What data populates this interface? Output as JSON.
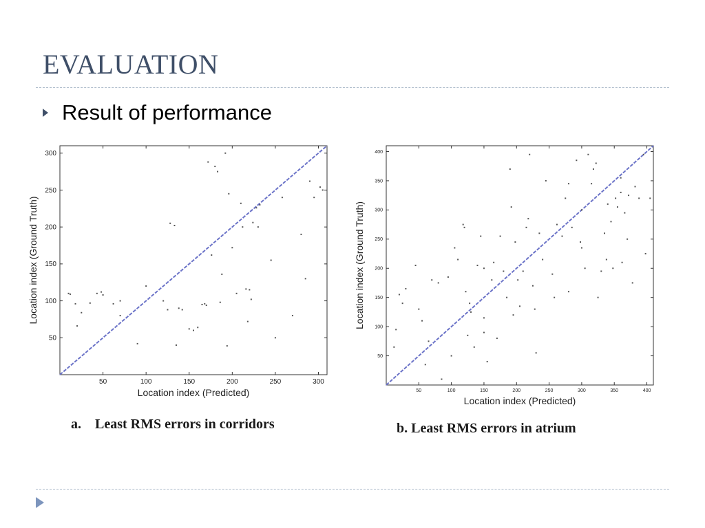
{
  "slide": {
    "title": "EVALUATION",
    "bullet": "Result of performance",
    "caption_a": "a.    Least RMS errors in corridors",
    "caption_b": "b. Least RMS errors in atrium"
  },
  "colors": {
    "title": "#3f4f68",
    "diagonal": "#6b73c8",
    "points": "#555555",
    "rule": "#a9b8c8"
  },
  "icons": {
    "bullet": "triangle-right-icon",
    "footer": "triangle-right-icon"
  },
  "chart_data": [
    {
      "type": "scatter",
      "xlabel": "Location index  (Predicted)",
      "ylabel": "Location index  (Ground Truth)",
      "xlim": [
        0,
        310
      ],
      "ylim": [
        0,
        310
      ],
      "xticks": [
        50,
        100,
        150,
        200,
        250,
        300
      ],
      "yticks": [
        50,
        100,
        150,
        200,
        250,
        300
      ],
      "grid": false,
      "diagonal": [
        [
          0,
          0
        ],
        [
          310,
          310
        ]
      ],
      "points": [
        [
          10,
          110
        ],
        [
          12,
          109
        ],
        [
          18,
          96
        ],
        [
          25,
          84
        ],
        [
          35,
          97
        ],
        [
          43,
          110
        ],
        [
          48,
          112
        ],
        [
          50,
          108
        ],
        [
          62,
          96
        ],
        [
          70,
          80
        ],
        [
          90,
          42
        ],
        [
          100,
          120
        ],
        [
          120,
          100
        ],
        [
          125,
          88
        ],
        [
          128,
          205
        ],
        [
          133,
          202
        ],
        [
          135,
          40
        ],
        [
          138,
          90
        ],
        [
          142,
          88
        ],
        [
          150,
          62
        ],
        [
          155,
          60
        ],
        [
          160,
          64
        ],
        [
          165,
          95
        ],
        [
          168,
          96
        ],
        [
          170,
          94
        ],
        [
          172,
          288
        ],
        [
          176,
          162
        ],
        [
          180,
          282
        ],
        [
          183,
          275
        ],
        [
          186,
          98
        ],
        [
          188,
          136
        ],
        [
          192,
          300
        ],
        [
          194,
          39
        ],
        [
          196,
          245
        ],
        [
          200,
          172
        ],
        [
          205,
          110
        ],
        [
          210,
          232
        ],
        [
          212,
          200
        ],
        [
          216,
          116
        ],
        [
          218,
          72
        ],
        [
          220,
          115
        ],
        [
          222,
          102
        ],
        [
          224,
          206
        ],
        [
          228,
          226
        ],
        [
          230,
          200
        ],
        [
          232,
          230
        ],
        [
          250,
          50
        ],
        [
          270,
          80
        ],
        [
          280,
          190
        ],
        [
          285,
          130
        ],
        [
          290,
          262
        ],
        [
          295,
          240
        ],
        [
          302,
          254
        ],
        [
          305,
          250
        ],
        [
          258,
          240
        ],
        [
          245,
          155
        ],
        [
          20,
          66
        ],
        [
          70,
          100
        ]
      ]
    },
    {
      "type": "scatter",
      "xlabel": "Location index  (Predicted)",
      "ylabel": "Location index  (Ground Truth)",
      "xlim": [
        0,
        410
      ],
      "ylim": [
        0,
        410
      ],
      "xticks": [
        50,
        100,
        150,
        200,
        250,
        300,
        350,
        400
      ],
      "yticks": [
        50,
        100,
        150,
        200,
        250,
        300,
        350,
        400
      ],
      "grid": false,
      "diagonal": [
        [
          0,
          0
        ],
        [
          410,
          410
        ]
      ],
      "points": [
        [
          12,
          65
        ],
        [
          15,
          95
        ],
        [
          20,
          155
        ],
        [
          25,
          140
        ],
        [
          30,
          165
        ],
        [
          45,
          205
        ],
        [
          50,
          130
        ],
        [
          55,
          110
        ],
        [
          60,
          35
        ],
        [
          65,
          75
        ],
        [
          70,
          180
        ],
        [
          80,
          175
        ],
        [
          85,
          10
        ],
        [
          95,
          185
        ],
        [
          100,
          50
        ],
        [
          105,
          235
        ],
        [
          110,
          215
        ],
        [
          118,
          275
        ],
        [
          120,
          270
        ],
        [
          122,
          160
        ],
        [
          125,
          85
        ],
        [
          128,
          140
        ],
        [
          130,
          125
        ],
        [
          135,
          65
        ],
        [
          140,
          205
        ],
        [
          145,
          255
        ],
        [
          150,
          115
        ],
        [
          150,
          90
        ],
        [
          155,
          40
        ],
        [
          162,
          180
        ],
        [
          165,
          210
        ],
        [
          170,
          80
        ],
        [
          175,
          255
        ],
        [
          180,
          195
        ],
        [
          185,
          150
        ],
        [
          190,
          370
        ],
        [
          192,
          305
        ],
        [
          195,
          120
        ],
        [
          198,
          245
        ],
        [
          202,
          180
        ],
        [
          205,
          135
        ],
        [
          210,
          195
        ],
        [
          215,
          270
        ],
        [
          218,
          285
        ],
        [
          220,
          395
        ],
        [
          225,
          170
        ],
        [
          228,
          130
        ],
        [
          230,
          55
        ],
        [
          235,
          260
        ],
        [
          240,
          215
        ],
        [
          245,
          350
        ],
        [
          255,
          190
        ],
        [
          258,
          150
        ],
        [
          262,
          275
        ],
        [
          270,
          255
        ],
        [
          275,
          320
        ],
        [
          280,
          345
        ],
        [
          285,
          270
        ],
        [
          292,
          385
        ],
        [
          298,
          245
        ],
        [
          300,
          300
        ],
        [
          305,
          200
        ],
        [
          310,
          395
        ],
        [
          315,
          345
        ],
        [
          318,
          370
        ],
        [
          322,
          380
        ],
        [
          325,
          150
        ],
        [
          330,
          195
        ],
        [
          335,
          260
        ],
        [
          338,
          215
        ],
        [
          340,
          310
        ],
        [
          345,
          280
        ],
        [
          348,
          200
        ],
        [
          352,
          320
        ],
        [
          355,
          305
        ],
        [
          360,
          330
        ],
        [
          362,
          210
        ],
        [
          366,
          295
        ],
        [
          370,
          250
        ],
        [
          372,
          325
        ],
        [
          378,
          175
        ],
        [
          382,
          340
        ],
        [
          388,
          320
        ],
        [
          395,
          395
        ],
        [
          398,
          225
        ],
        [
          405,
          320
        ],
        [
          360,
          355
        ],
        [
          300,
          235
        ],
        [
          280,
          160
        ],
        [
          150,
          200
        ]
      ]
    }
  ]
}
